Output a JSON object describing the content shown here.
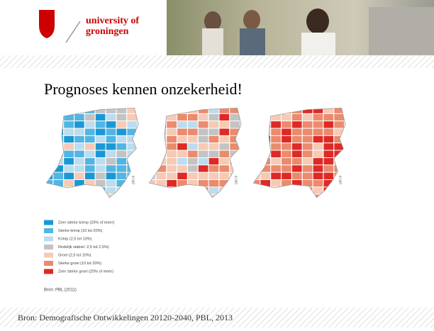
{
  "header": {
    "logo_text": [
      "university of",
      "groningen"
    ]
  },
  "title": "Prognoses kennen onzekerheid!",
  "maps": {
    "watermark": "pbl.nl"
  },
  "legend": [
    {
      "label": "Zeer sterke krimp (20% of meer)",
      "color": "#1a98d5"
    },
    {
      "label": "Sterke krimp (10 tot 20%)",
      "color": "#52b5e2"
    },
    {
      "label": "Krimp (2,5 tot 10%)",
      "color": "#bcdcef"
    },
    {
      "label": "Redelijk stabiel -2,5 tot 2,5%)",
      "color": "#c3c3c3"
    },
    {
      "label": "Groei (2,5 tot 10%)",
      "color": "#f6cab5"
    },
    {
      "label": "Sterke groei (10 tot 20%)",
      "color": "#eb8a6d"
    },
    {
      "label": "Zeer sterke groei (20% of meer)",
      "color": "#de2a26"
    }
  ],
  "source": "Bron: PBL (2011)",
  "footer": "Bron: Demografische Ontwikkelingen 20120-2040, PBL, 2013"
}
